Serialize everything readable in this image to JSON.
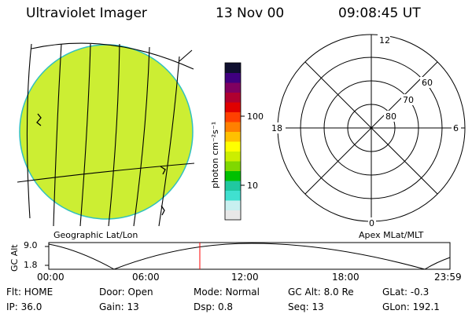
{
  "header": {
    "title": "Ultraviolet Imager",
    "date": "13 Nov 00",
    "time": "09:08:45 UT"
  },
  "colorbar": {
    "unit_label": "photon cm⁻²s⁻¹",
    "ticks": [
      {
        "value": 100,
        "label": "100"
      },
      {
        "value": 10,
        "label": "10"
      }
    ],
    "colors": [
      "#e8e8e8",
      "#c8f0f0",
      "#40e0d0",
      "#20c8a0",
      "#00c000",
      "#80d800",
      "#ccee00",
      "#ffff00",
      "#ffc000",
      "#ff8000",
      "#ff4000",
      "#e00000",
      "#b00030",
      "#800060",
      "#400080",
      "#101030"
    ]
  },
  "left_panel": {
    "label": "Geographic Lat/Lon",
    "disk_color": "#ccee33"
  },
  "right_panel": {
    "label": "Apex MLat/MLT",
    "mlt_labels": {
      "top": "12",
      "left": "18",
      "right": "6",
      "bottom": "0"
    },
    "lat_labels": [
      "60",
      "70",
      "80"
    ]
  },
  "alt_plot": {
    "ylabel": "GC Alt",
    "yticks": [
      "9.0",
      "1.8"
    ],
    "xticks": [
      "00:00",
      "06:00",
      "12:00",
      "18:00",
      "23:59"
    ],
    "marker_time": "09:08"
  },
  "footer": {
    "flt": "Flt: HOME",
    "door": "Door: Open",
    "mode": "Mode: Normal",
    "gcalt": "GC Alt: 8.0 Re",
    "glat": "GLat:  -0.3",
    "ip": "IP: 36.0",
    "gain": "Gain: 13",
    "dsp": "Dsp:     0.8",
    "seq": "Seq: 13",
    "glon": "GLon: 192.1"
  }
}
